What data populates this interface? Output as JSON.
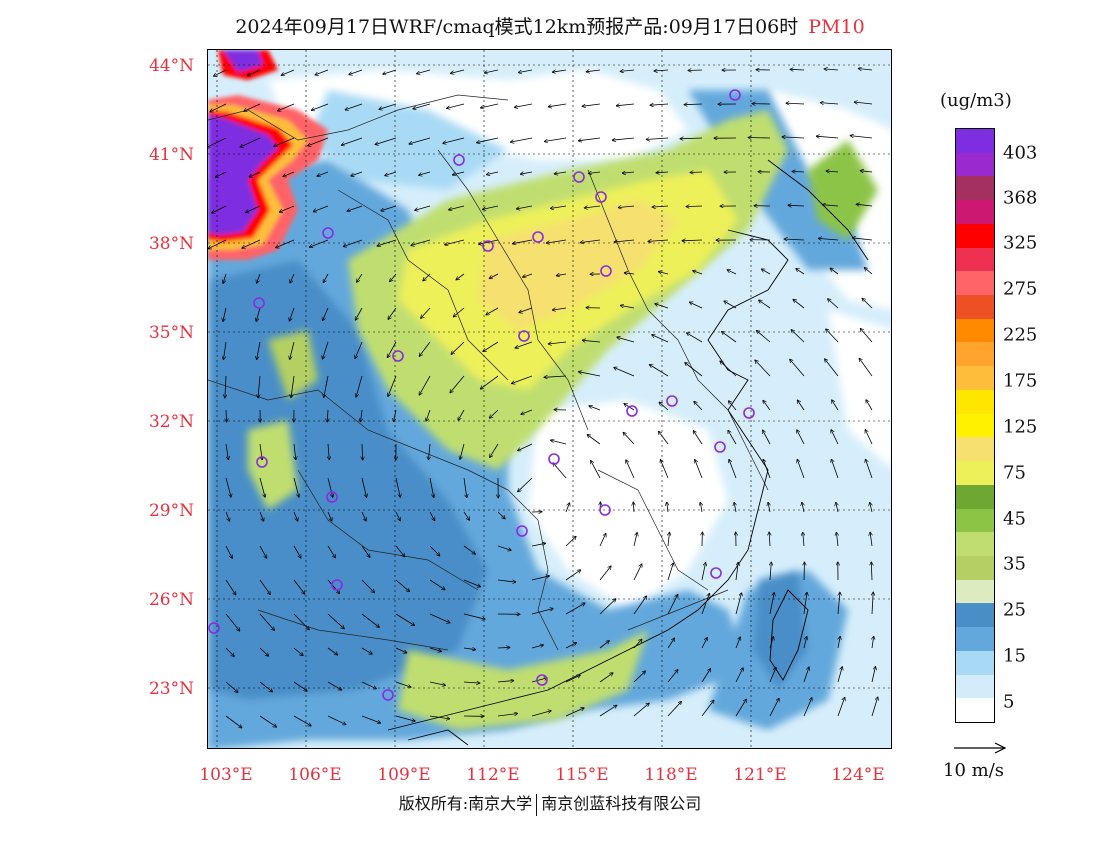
{
  "title": "2024年09月17日WRF/cmaq模式12km预报产品:09月17日06时",
  "pollutant": "PM10",
  "lat_labels": [
    "44°N",
    "41°N",
    "38°N",
    "35°N",
    "32°N",
    "29°N",
    "26°N",
    "23°N"
  ],
  "lon_labels": [
    "103°E",
    "106°E",
    "109°E",
    "112°E",
    "115°E",
    "118°E",
    "121°E",
    "124°E"
  ],
  "legend": {
    "unit": "(ug/m3)",
    "labels": [
      "403",
      "368",
      "325",
      "275",
      "225",
      "175",
      "125",
      "75",
      "45",
      "35",
      "25",
      "15",
      "5"
    ],
    "colors": [
      "#7e2ee0",
      "#9a2ad0",
      "#a33060",
      "#cc1870",
      "#ff0000",
      "#f03050",
      "#ff6468",
      "#ee5025",
      "#ff8a00",
      "#ffa52e",
      "#ffbe3a",
      "#ffe600",
      "#fff100",
      "#f5e070",
      "#eef05a",
      "#6ea832",
      "#8cc446",
      "#c0de70",
      "#b4d062",
      "#dcebc0",
      "#4a8ec8",
      "#63a8dc",
      "#a9daf5",
      "#d2ecfa",
      "#ffffff"
    ]
  },
  "vector_reference": "10 m/s",
  "copyright_left": "版权所有:南京大学",
  "copyright_right": "南京创蓝科技有限公司",
  "colors": {
    "label_red": "#e8313d",
    "station_marker": "#8a2be2"
  }
}
